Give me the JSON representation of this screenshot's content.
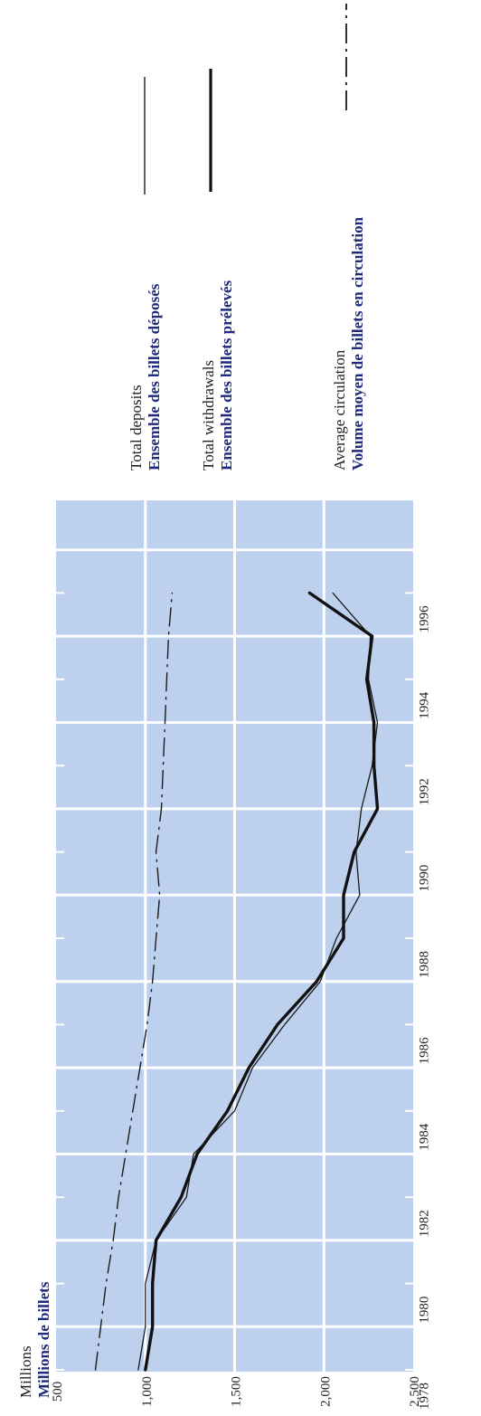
{
  "chart_data": {
    "type": "line",
    "orientation": "rotated-90-clockwise",
    "unit_label_en": "Millions",
    "unit_label_fr": "Millions de billets",
    "x_ticks": [
      "1978",
      "1980",
      "1982",
      "1984",
      "1986",
      "1988",
      "1990",
      "1992",
      "1994",
      "1996"
    ],
    "xlim": [
      1978,
      1996.5
    ],
    "y_ticks": [
      "500",
      "1,000",
      "1,500",
      "2,000",
      "2,500"
    ],
    "ylim": [
      500,
      2500
    ],
    "grid": true,
    "plot_background": "#bdd0ee",
    "legend_position": "right",
    "series": [
      {
        "key": "deposits",
        "name_en": "Total deposits",
        "name_fr": "Ensemble des billets déposés",
        "style": "thin",
        "color": "#1a1a1a",
        "x": [
          1978,
          1979,
          1980,
          1981,
          1982,
          1983,
          1984,
          1985,
          1986,
          1987,
          1988,
          1989,
          1990,
          1991,
          1992,
          1993,
          1994,
          1995,
          1996
        ],
        "y": [
          960,
          1000,
          1000,
          1060,
          1230,
          1270,
          1500,
          1600,
          1780,
          1980,
          2070,
          2200,
          2180,
          2210,
          2270,
          2300,
          2250,
          2260,
          2050
        ]
      },
      {
        "key": "withdrawals",
        "name_en": "Total withdrawals",
        "name_fr": "Ensemble des billets prélevés",
        "style": "thick",
        "color": "#111111",
        "x": [
          1978,
          1979,
          1980,
          1981,
          1982,
          1983,
          1984,
          1985,
          1986,
          1987,
          1988,
          1989,
          1990,
          1991,
          1992,
          1993,
          1994,
          1995,
          1996
        ],
        "y": [
          1000,
          1040,
          1040,
          1060,
          1200,
          1290,
          1460,
          1580,
          1740,
          1960,
          2110,
          2110,
          2170,
          2300,
          2280,
          2280,
          2240,
          2270,
          1920
        ]
      },
      {
        "key": "circulation",
        "name_en": "Average circulation",
        "name_fr": "Volume moyen de billets en circulation",
        "style": "dash-dot",
        "color": "#1a1a1a",
        "x": [
          1978,
          1979,
          1980,
          1981,
          1982,
          1983,
          1984,
          1985,
          1986,
          1987,
          1988,
          1989,
          1990,
          1991,
          1992,
          1993,
          1994,
          1995,
          1996
        ],
        "y": [
          720,
          750,
          780,
          820,
          850,
          890,
          930,
          970,
          1010,
          1040,
          1060,
          1080,
          1060,
          1090,
          1100,
          1110,
          1120,
          1130,
          1150
        ]
      }
    ]
  }
}
